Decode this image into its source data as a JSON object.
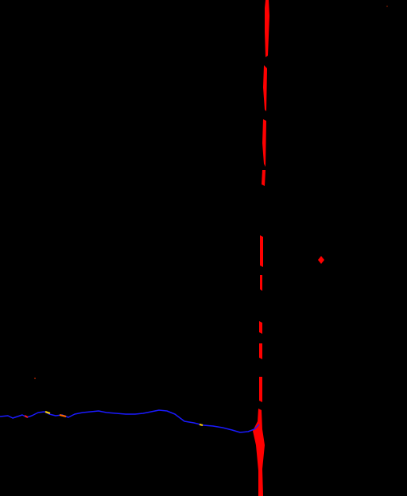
{
  "image": {
    "background_color": "#000000"
  },
  "annotations": {
    "vertical_feature": {
      "color": "#ff0000"
    },
    "horizontal_feature": {
      "color": "#1a1aff"
    },
    "highlight_segments": {
      "colors": [
        "#ffd400",
        "#ff6a00",
        "#ff1a1a"
      ]
    },
    "marker": {
      "color": "#ff0000"
    },
    "small_dots": {
      "color": "#ff3300"
    }
  }
}
